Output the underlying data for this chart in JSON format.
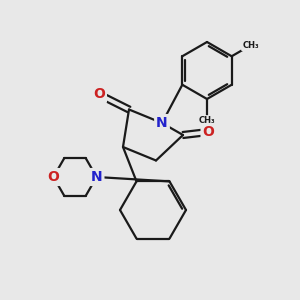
{
  "bg_color": "#e8e8e8",
  "bond_color": "#1a1a1a",
  "bond_width": 1.6,
  "N_color": "#2222cc",
  "O_color": "#cc2222",
  "font_size_atom": 10,
  "fig_width": 3.0,
  "fig_height": 3.0,
  "dpi": 100,
  "xlim": [
    0,
    10
  ],
  "ylim": [
    0,
    10
  ]
}
